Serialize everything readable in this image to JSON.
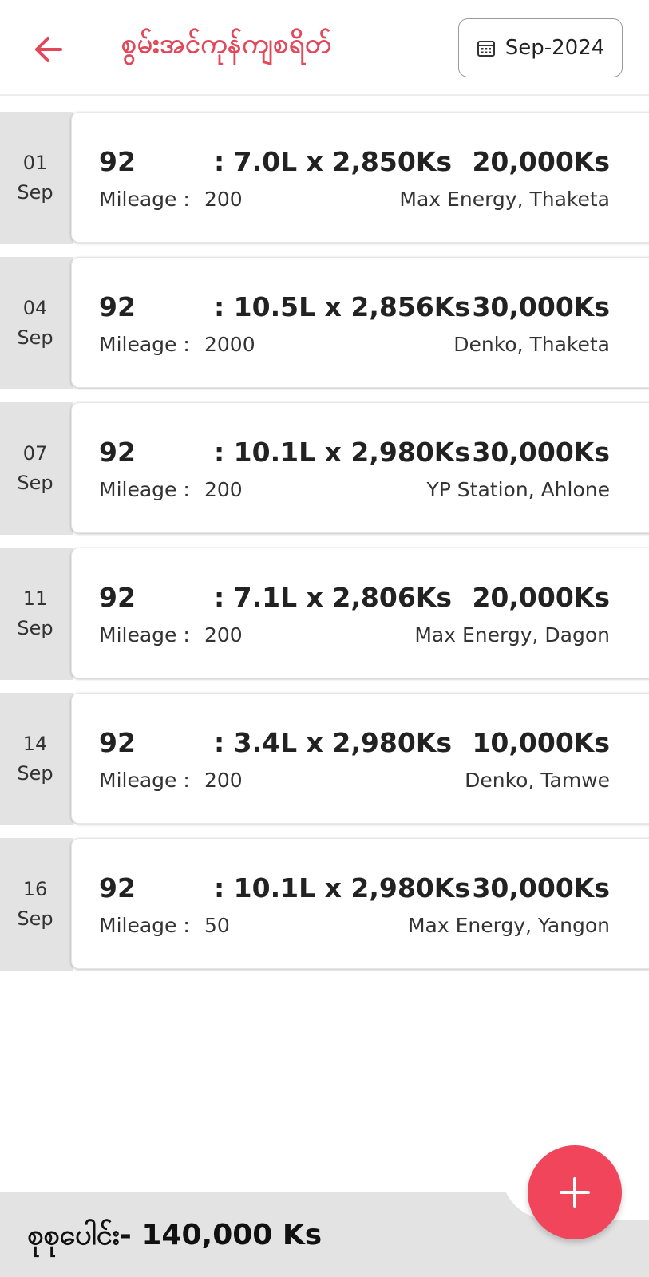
{
  "header": {
    "title": "စွမ်းအင်ကုန်ကျစရိတ်",
    "month": "Sep-2024",
    "back_icon": "arrow-left-icon",
    "calendar_icon": "calendar-icon",
    "accent_color": "#e2485a"
  },
  "entries": [
    {
      "day": "01",
      "month": "Sep",
      "fuel": "92",
      "qty": ":  7.0L x 2,850Ks",
      "amount": "20,000Ks",
      "mileage_label": "Mileage  :",
      "mileage": "200",
      "station": "Max Energy, Thaketa"
    },
    {
      "day": "04",
      "month": "Sep",
      "fuel": "92",
      "qty": ":  10.5L x 2,856Ks",
      "amount": "30,000Ks",
      "mileage_label": "Mileage  :",
      "mileage": "2000",
      "station": "Denko, Thaketa"
    },
    {
      "day": "07",
      "month": "Sep",
      "fuel": "92",
      "qty": ":  10.1L x 2,980Ks",
      "amount": "30,000Ks",
      "mileage_label": "Mileage  :",
      "mileage": "200",
      "station": "YP Station, Ahlone"
    },
    {
      "day": "11",
      "month": "Sep",
      "fuel": "92",
      "qty": ":  7.1L x 2,806Ks",
      "amount": "20,000Ks",
      "mileage_label": "Mileage  :",
      "mileage": "200",
      "station": "Max Energy, Dagon"
    },
    {
      "day": "14",
      "month": "Sep",
      "fuel": "92",
      "qty": ":  3.4L x 2,980Ks",
      "amount": "10,000Ks",
      "mileage_label": "Mileage  :",
      "mileage": "200",
      "station": "Denko, Tamwe"
    },
    {
      "day": "16",
      "month": "Sep",
      "fuel": "92",
      "qty": ":  10.1L x 2,980Ks",
      "amount": "30,000Ks",
      "mileage_label": "Mileage  :",
      "mileage": "50",
      "station": "Max Energy, Yangon"
    }
  ],
  "footer": {
    "total": "စုစုပေါင်း- 140,000 Ks",
    "add_icon": "plus-icon",
    "fab_color": "#f0455a"
  }
}
